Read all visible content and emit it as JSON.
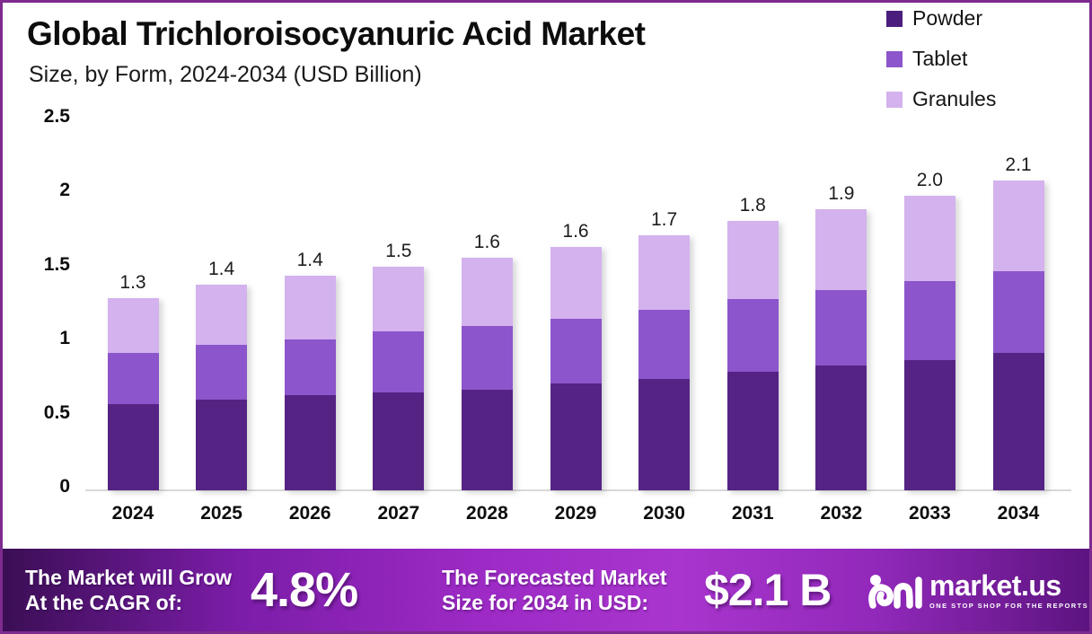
{
  "header": {
    "title": "Global Trichloroisocyanuric Acid Market",
    "subtitle": "Size, by Form, 2024-2034 (USD Billion)"
  },
  "legend": [
    {
      "label": "Powder",
      "color": "#4b1e7d"
    },
    {
      "label": "Tablet",
      "color": "#8c55cb"
    },
    {
      "label": "Granules",
      "color": "#d3b2ee"
    }
  ],
  "chart_data": {
    "type": "bar",
    "stacked": true,
    "title": "Global Trichloroisocyanuric Acid Market Size, by Form, 2024-2034 (USD Billion)",
    "xlabel": "",
    "ylabel": "",
    "grid": false,
    "legend_position": "top-right",
    "ylim": [
      0,
      2.5
    ],
    "y_ticks": [
      "0",
      "0.5",
      "1",
      "1.5",
      "2",
      "2.5"
    ],
    "categories": [
      "2024",
      "2025",
      "2026",
      "2027",
      "2028",
      "2029",
      "2030",
      "2031",
      "2032",
      "2033",
      "2034"
    ],
    "series": [
      {
        "name": "Powder",
        "color": "#552384",
        "values": [
          0.58,
          0.61,
          0.64,
          0.66,
          0.68,
          0.72,
          0.75,
          0.8,
          0.84,
          0.88,
          0.93
        ]
      },
      {
        "name": "Tablet",
        "color": "#8c55cb",
        "values": [
          0.35,
          0.37,
          0.38,
          0.41,
          0.43,
          0.44,
          0.47,
          0.49,
          0.51,
          0.53,
          0.55
        ]
      },
      {
        "name": "Granules",
        "color": "#d3b2ee",
        "values": [
          0.37,
          0.41,
          0.43,
          0.44,
          0.46,
          0.48,
          0.5,
          0.53,
          0.55,
          0.58,
          0.61
        ]
      }
    ],
    "total_labels": [
      "1.3",
      "1.4",
      "1.4",
      "1.5",
      "1.6",
      "1.6",
      "1.7",
      "1.8",
      "1.9",
      "2.0",
      "2.1"
    ]
  },
  "banner": {
    "growth_text": "The Market will Grow\nAt the CAGR of:",
    "cagr_value": "4.8%",
    "forecast_text": "The Forecasted Market\nSize for 2034 in USD:",
    "forecast_value": "$2.1 B",
    "logo_text": "market.us",
    "logo_tagline": "ONE STOP SHOP FOR THE REPORTS"
  },
  "colors": {
    "frame_border": "#7d2b8f",
    "axis_line": "#d9d9d9",
    "banner_gradient_left": "#3b0e55",
    "banner_gradient_mid": "#a935ce",
    "banner_gradient_right": "#5d1480",
    "text_dark": "#0d0d0d",
    "text_light": "#ffffff"
  }
}
